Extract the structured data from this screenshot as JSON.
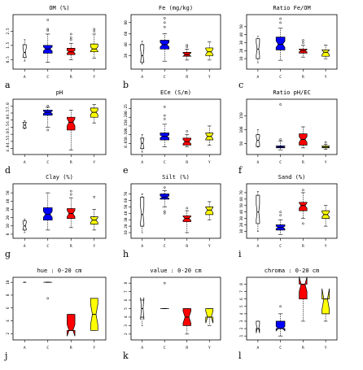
{
  "chart_data": [
    {
      "type": "boxplot",
      "letter": "a",
      "title": "OM (%)",
      "categories": [
        "A",
        "C",
        "R",
        "Y"
      ],
      "yticks": [
        "0.5",
        "1.5",
        "2.5"
      ],
      "ylim": [
        0,
        3.5
      ],
      "boxes": [
        {
          "min": 0.4,
          "q1": 0.65,
          "med": 1.0,
          "q3": 1.55,
          "max": 1.9,
          "notch": 0.35,
          "width": 0.34,
          "color": "#ffffff",
          "outliers": []
        },
        {
          "min": 0.3,
          "q1": 0.95,
          "med": 1.25,
          "q3": 1.5,
          "max": 2.3,
          "notch": 0.15,
          "width": 0.9,
          "color": "#0000ff",
          "outliers": [
            2.55,
            2.65,
            3.3
          ]
        },
        {
          "min": 0.5,
          "q1": 0.85,
          "med": 1.05,
          "q3": 1.3,
          "max": 1.65,
          "notch": 0.1,
          "width": 0.8,
          "color": "#ff0000",
          "outliers": [
            1.9,
            2.05,
            2.3
          ]
        },
        {
          "min": 0.6,
          "q1": 1.05,
          "med": 1.25,
          "q3": 1.6,
          "max": 2.3,
          "notch": 0.15,
          "width": 0.75,
          "color": "#ffff00",
          "outliers": [
            2.5,
            2.65
          ]
        }
      ]
    },
    {
      "type": "boxplot",
      "letter": "b",
      "title": "Fe (mg/kg)",
      "categories": [
        "A",
        "C",
        "R",
        "Y"
      ],
      "yticks": [
        "20",
        "40",
        "60",
        "80"
      ],
      "ylim": [
        0,
        90
      ],
      "boxes": [
        {
          "min": 5,
          "q1": 8,
          "med": 20,
          "q3": 40,
          "max": 46,
          "notch": 12,
          "width": 0.34,
          "color": "#ffffff",
          "outliers": []
        },
        {
          "min": 10,
          "q1": 32,
          "med": 40,
          "q3": 48,
          "max": 60,
          "notch": 4,
          "width": 0.9,
          "color": "#0000ff",
          "outliers": [
            72,
            80,
            88
          ]
        },
        {
          "min": 12,
          "q1": 19,
          "med": 22,
          "q3": 26,
          "max": 32,
          "notch": 3,
          "width": 0.8,
          "color": "#ff0000",
          "outliers": [
            36,
            39
          ]
        },
        {
          "min": 12,
          "q1": 20,
          "med": 27,
          "q3": 34,
          "max": 45,
          "notch": 5,
          "width": 0.75,
          "color": "#ffff00",
          "outliers": []
        }
      ]
    },
    {
      "type": "boxplot",
      "letter": "c",
      "title": "Ratio Fe/OM",
      "categories": [
        "A",
        "C",
        "R",
        "Y"
      ],
      "yticks": [
        "10",
        "20",
        "30",
        "40",
        "50"
      ],
      "ylim": [
        0,
        62
      ],
      "boxes": [
        {
          "min": 5,
          "q1": 10,
          "med": 22,
          "q3": 35,
          "max": 38,
          "notch": 8,
          "width": 0.34,
          "color": "#ffffff",
          "outliers": []
        },
        {
          "min": 8,
          "q1": 21,
          "med": 28,
          "q3": 37,
          "max": 48,
          "notch": 4,
          "width": 0.9,
          "color": "#0000ff",
          "outliers": [
            55,
            60
          ]
        },
        {
          "min": 12,
          "q1": 17,
          "med": 20,
          "q3": 22,
          "max": 27,
          "notch": 1.5,
          "width": 0.8,
          "color": "#ff0000",
          "outliers": [
            30,
            33
          ]
        },
        {
          "min": 10,
          "q1": 13,
          "med": 18,
          "q3": 21,
          "max": 27,
          "notch": 3,
          "width": 0.75,
          "color": "#ffff00",
          "outliers": []
        }
      ]
    },
    {
      "type": "boxplot",
      "letter": "d",
      "title": "pH",
      "categories": [
        "A",
        "C",
        "R",
        "Y"
      ],
      "yticks": [
        "4.0",
        "4.5",
        "5.0",
        "5.5",
        "6.0",
        "6.5",
        "7.0"
      ],
      "ylim": [
        3.75,
        7.3
      ],
      "boxes": [
        {
          "min": 5.4,
          "q1": 5.45,
          "med": 5.65,
          "q3": 5.85,
          "max": 5.95,
          "notch": 0.2,
          "width": 0.34,
          "color": "#ffffff",
          "outliers": []
        },
        {
          "min": 5.5,
          "q1": 6.35,
          "med": 6.55,
          "q3": 6.7,
          "max": 6.9,
          "notch": 0.08,
          "width": 0.9,
          "color": "#0000ff",
          "outliers": [
            7.0,
            5.3
          ]
        },
        {
          "min": 3.9,
          "q1": 5.3,
          "med": 5.85,
          "q3": 6.2,
          "max": 6.7,
          "notch": 0.25,
          "width": 0.8,
          "color": "#ff0000",
          "outliers": []
        },
        {
          "min": 5.8,
          "q1": 6.2,
          "med": 6.55,
          "q3": 6.85,
          "max": 7.1,
          "notch": 0.15,
          "width": 0.75,
          "color": "#ffff00",
          "outliers": []
        }
      ]
    },
    {
      "type": "boxplot",
      "letter": "e",
      "title": "ECe (S/m)",
      "categories": [
        "A",
        "C",
        "R",
        "Y"
      ],
      "yticks": [
        "0.05",
        "0.10",
        "0.15",
        "0.20",
        "0.25"
      ],
      "ylim": [
        0,
        0.29
      ],
      "boxes": [
        {
          "min": 0.0,
          "q1": 0.02,
          "med": 0.05,
          "q3": 0.08,
          "max": 0.1,
          "notch": 0.03,
          "width": 0.34,
          "color": "#ffffff",
          "outliers": []
        },
        {
          "min": 0.03,
          "q1": 0.07,
          "med": 0.09,
          "q3": 0.11,
          "max": 0.16,
          "notch": 0.008,
          "width": 0.9,
          "color": "#0000ff",
          "outliers": [
            0.19,
            0.21,
            0.26
          ]
        },
        {
          "min": 0.03,
          "q1": 0.04,
          "med": 0.06,
          "q3": 0.08,
          "max": 0.1,
          "notch": 0.012,
          "width": 0.8,
          "color": "#ff0000",
          "outliers": [
            0.12
          ]
        },
        {
          "min": 0.04,
          "q1": 0.07,
          "med": 0.09,
          "q3": 0.11,
          "max": 0.15,
          "notch": 0.015,
          "width": 0.75,
          "color": "#ffff00",
          "outliers": []
        }
      ]
    },
    {
      "type": "boxplot",
      "letter": "f",
      "title": "Ratio pH/EC",
      "categories": [
        "A",
        "C",
        "R",
        "Y"
      ],
      "yticks": [
        "50",
        "100",
        "150"
      ],
      "ylim": [
        20,
        200
      ],
      "boxes": [
        {
          "min": 38,
          "q1": 40,
          "med": 62,
          "q3": 82,
          "max": 100,
          "notch": 12,
          "width": 0.34,
          "color": "#ffffff",
          "outliers": []
        },
        {
          "min": 28,
          "q1": 35,
          "med": 38,
          "q3": 42,
          "max": 60,
          "notch": 2,
          "width": 0.9,
          "color": "#0000ff",
          "outliers": [
            65,
            190
          ]
        },
        {
          "min": 35,
          "q1": 45,
          "med": 65,
          "q3": 85,
          "max": 110,
          "notch": 10,
          "width": 0.8,
          "color": "#ff0000",
          "outliers": []
        },
        {
          "min": 30,
          "q1": 35,
          "med": 38,
          "q3": 42,
          "max": 48,
          "notch": 2,
          "width": 0.75,
          "color": "#ffff00",
          "outliers": [
            55
          ]
        }
      ]
    },
    {
      "type": "boxplot",
      "letter": "g",
      "title": "Clay (%)",
      "categories": [
        "A",
        "C",
        "R",
        "Y"
      ],
      "yticks": [
        "0",
        "10",
        "20",
        "30",
        "40",
        "50"
      ],
      "ylim": [
        -2,
        58
      ],
      "boxes": [
        {
          "min": 2,
          "q1": 5,
          "med": 10,
          "q3": 16,
          "max": 18,
          "notch": 4,
          "width": 0.34,
          "color": "#ffffff",
          "outliers": []
        },
        {
          "min": 5,
          "q1": 17,
          "med": 24,
          "q3": 32,
          "max": 50,
          "notch": 3.5,
          "width": 0.9,
          "color": "#0000ff",
          "outliers": []
        },
        {
          "min": 8,
          "q1": 19,
          "med": 25,
          "q3": 31,
          "max": 44,
          "notch": 4,
          "width": 0.8,
          "color": "#ff0000",
          "outliers": [
            48,
            52
          ]
        },
        {
          "min": 5,
          "q1": 12,
          "med": 17,
          "q3": 21,
          "max": 30,
          "notch": 3,
          "width": 0.75,
          "color": "#ffff00",
          "outliers": [
            45
          ]
        }
      ]
    },
    {
      "type": "boxplot",
      "letter": "h",
      "title": "Silt (%)",
      "categories": [
        "A",
        "C",
        "R",
        "Y"
      ],
      "yticks": [
        "10",
        "20",
        "30",
        "40",
        "50",
        "60",
        "70"
      ],
      "ylim": [
        5,
        82
      ],
      "boxes": [
        {
          "min": 10,
          "q1": 20,
          "med": 38,
          "q3": 65,
          "max": 70,
          "notch": 12,
          "width": 0.34,
          "color": "#ffffff",
          "outliers": []
        },
        {
          "min": 50,
          "q1": 62,
          "med": 65,
          "q3": 70,
          "max": 75,
          "notch": 2,
          "width": 0.9,
          "color": "#0000ff",
          "outliers": [
            40,
            43,
            80
          ]
        },
        {
          "min": 10,
          "q1": 27,
          "med": 32,
          "q3": 36,
          "max": 44,
          "notch": 3,
          "width": 0.8,
          "color": "#ff0000",
          "outliers": [
            48
          ]
        },
        {
          "min": 30,
          "q1": 38,
          "med": 45,
          "q3": 50,
          "max": 58,
          "notch": 4,
          "width": 0.75,
          "color": "#ffff00",
          "outliers": []
        }
      ]
    },
    {
      "type": "boxplot",
      "letter": "i",
      "title": "Sand (%)",
      "categories": [
        "A",
        "C",
        "R",
        "Y"
      ],
      "yticks": [
        "10",
        "20",
        "30",
        "40",
        "50",
        "60",
        "70"
      ],
      "ylim": [
        3,
        80
      ],
      "boxes": [
        {
          "min": 10,
          "q1": 22,
          "med": 40,
          "q3": 66,
          "max": 72,
          "notch": 12,
          "width": 0.34,
          "color": "#ffffff",
          "outliers": []
        },
        {
          "min": 5,
          "q1": 12,
          "med": 16,
          "q3": 20,
          "max": 28,
          "notch": 2,
          "width": 0.9,
          "color": "#0000ff",
          "outliers": [
            35,
            40
          ]
        },
        {
          "min": 30,
          "q1": 42,
          "med": 50,
          "q3": 55,
          "max": 70,
          "notch": 4,
          "width": 0.8,
          "color": "#ff0000",
          "outliers": [
            22,
            74
          ]
        },
        {
          "min": 18,
          "q1": 30,
          "med": 36,
          "q3": 42,
          "max": 50,
          "notch": 4,
          "width": 0.75,
          "color": "#ffff00",
          "outliers": []
        }
      ]
    },
    {
      "type": "boxplot",
      "letter": "j",
      "title": "hue : 0-20 cm",
      "categories": [
        "A",
        "C",
        "R",
        "Y"
      ],
      "yticks": [
        "2",
        "4",
        "6",
        "8",
        "10"
      ],
      "ylim": [
        1.4,
        10.4
      ],
      "boxes": [
        {
          "min": 10,
          "q1": 10,
          "med": 10,
          "q3": 10,
          "max": 10,
          "notch": 0,
          "width": 0.34,
          "color": "#ffffff",
          "outliers": []
        },
        {
          "min": 10,
          "q1": 10,
          "med": 10,
          "q3": 10,
          "max": 10,
          "notch": 0,
          "width": 0.9,
          "color": "#0000ff",
          "outliers": [
            7.5
          ]
        },
        {
          "min": 2.5,
          "q1": 2.5,
          "med": 2.5,
          "q3": 5,
          "max": 5,
          "notch": 0.9,
          "width": 0.8,
          "color": "#ff0000",
          "outliers": []
        },
        {
          "min": 2.5,
          "q1": 2.5,
          "med": 5,
          "q3": 7.5,
          "max": 7.5,
          "notch": 1.6,
          "width": 0.75,
          "color": "#ffff00",
          "outliers": []
        }
      ]
    },
    {
      "type": "boxplot",
      "letter": "k",
      "title": "value : 0-20 cm",
      "categories": [
        "A",
        "C",
        "R",
        "Y"
      ],
      "yticks": [
        "2",
        "3",
        "4",
        "5",
        "6",
        "7",
        "8"
      ],
      "ylim": [
        1.6,
        8.4
      ],
      "boxes": [
        {
          "min": 3,
          "q1": 4,
          "med": 5,
          "q3": 6,
          "max": 6,
          "notch": 1.3,
          "width": 0.34,
          "color": "#ffffff",
          "outliers": []
        },
        {
          "min": 5,
          "q1": 5,
          "med": 5,
          "q3": 5,
          "max": 5,
          "notch": 0,
          "width": 0.9,
          "color": "#0000ff",
          "outliers": [
            8
          ]
        },
        {
          "min": 2,
          "q1": 3,
          "med": 4,
          "q3": 5,
          "max": 5,
          "notch": 0.7,
          "width": 0.8,
          "color": "#ff0000",
          "outliers": []
        },
        {
          "min": 3,
          "q1": 4,
          "med": 4,
          "q3": 5,
          "max": 5,
          "notch": 0.7,
          "width": 0.75,
          "color": "#ffff00",
          "outliers": []
        }
      ]
    },
    {
      "type": "boxplot",
      "letter": "l",
      "title": "chroma : 0-20 cm",
      "categories": [
        "A",
        "C",
        "R",
        "Y"
      ],
      "yticks": [
        "1",
        "2",
        "3",
        "4",
        "5",
        "6",
        "7",
        "8"
      ],
      "ylim": [
        0.8,
        8.6
      ],
      "boxes": [
        {
          "min": 2,
          "q1": 2,
          "med": 2,
          "q3": 3,
          "max": 3,
          "notch": 0.6,
          "width": 0.34,
          "color": "#ffffff",
          "outliers": []
        },
        {
          "min": 1,
          "q1": 2,
          "med": 2,
          "q3": 3,
          "max": 4,
          "notch": 0.3,
          "width": 0.9,
          "color": "#0000ff",
          "outliers": [
            5
          ]
        },
        {
          "min": 3,
          "q1": 6,
          "med": 8,
          "q3": 8,
          "max": 8,
          "notch": 1.0,
          "width": 0.8,
          "color": "#ff0000",
          "outliers": []
        },
        {
          "min": 3,
          "q1": 4,
          "med": 6,
          "q3": 6,
          "max": 6,
          "notch": 1.4,
          "width": 0.75,
          "color": "#ffff00",
          "outliers": []
        }
      ]
    }
  ]
}
